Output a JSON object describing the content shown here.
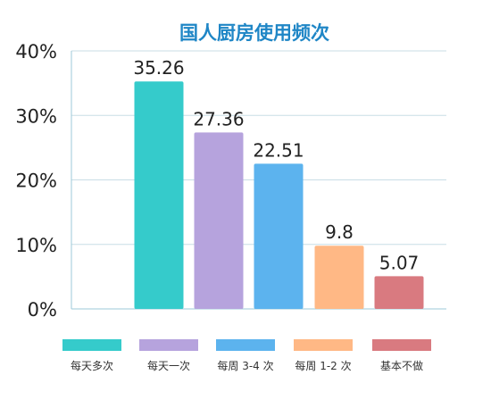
{
  "chart_data": {
    "type": "bar",
    "title": "国人厨房使用频次",
    "categories": [
      "每天多次",
      "每天一次",
      "每周 3-4 次",
      "每周 1-2 次",
      "基本不做"
    ],
    "values": [
      35.26,
      27.36,
      22.51,
      9.8,
      5.07
    ],
    "value_labels": [
      "35.26",
      "27.36",
      "22.51",
      "9.8",
      "5.07"
    ],
    "yticks": [
      "0%",
      "10%",
      "20%",
      "30%",
      "40%"
    ],
    "ylim": [
      0,
      40
    ],
    "colors": [
      "#35cbcb",
      "#b6a3dd",
      "#5cb3ee",
      "#ffb885",
      "#d97a80"
    ],
    "title_color": "#1f86c6",
    "grid": true,
    "legend_position": "bottom"
  }
}
